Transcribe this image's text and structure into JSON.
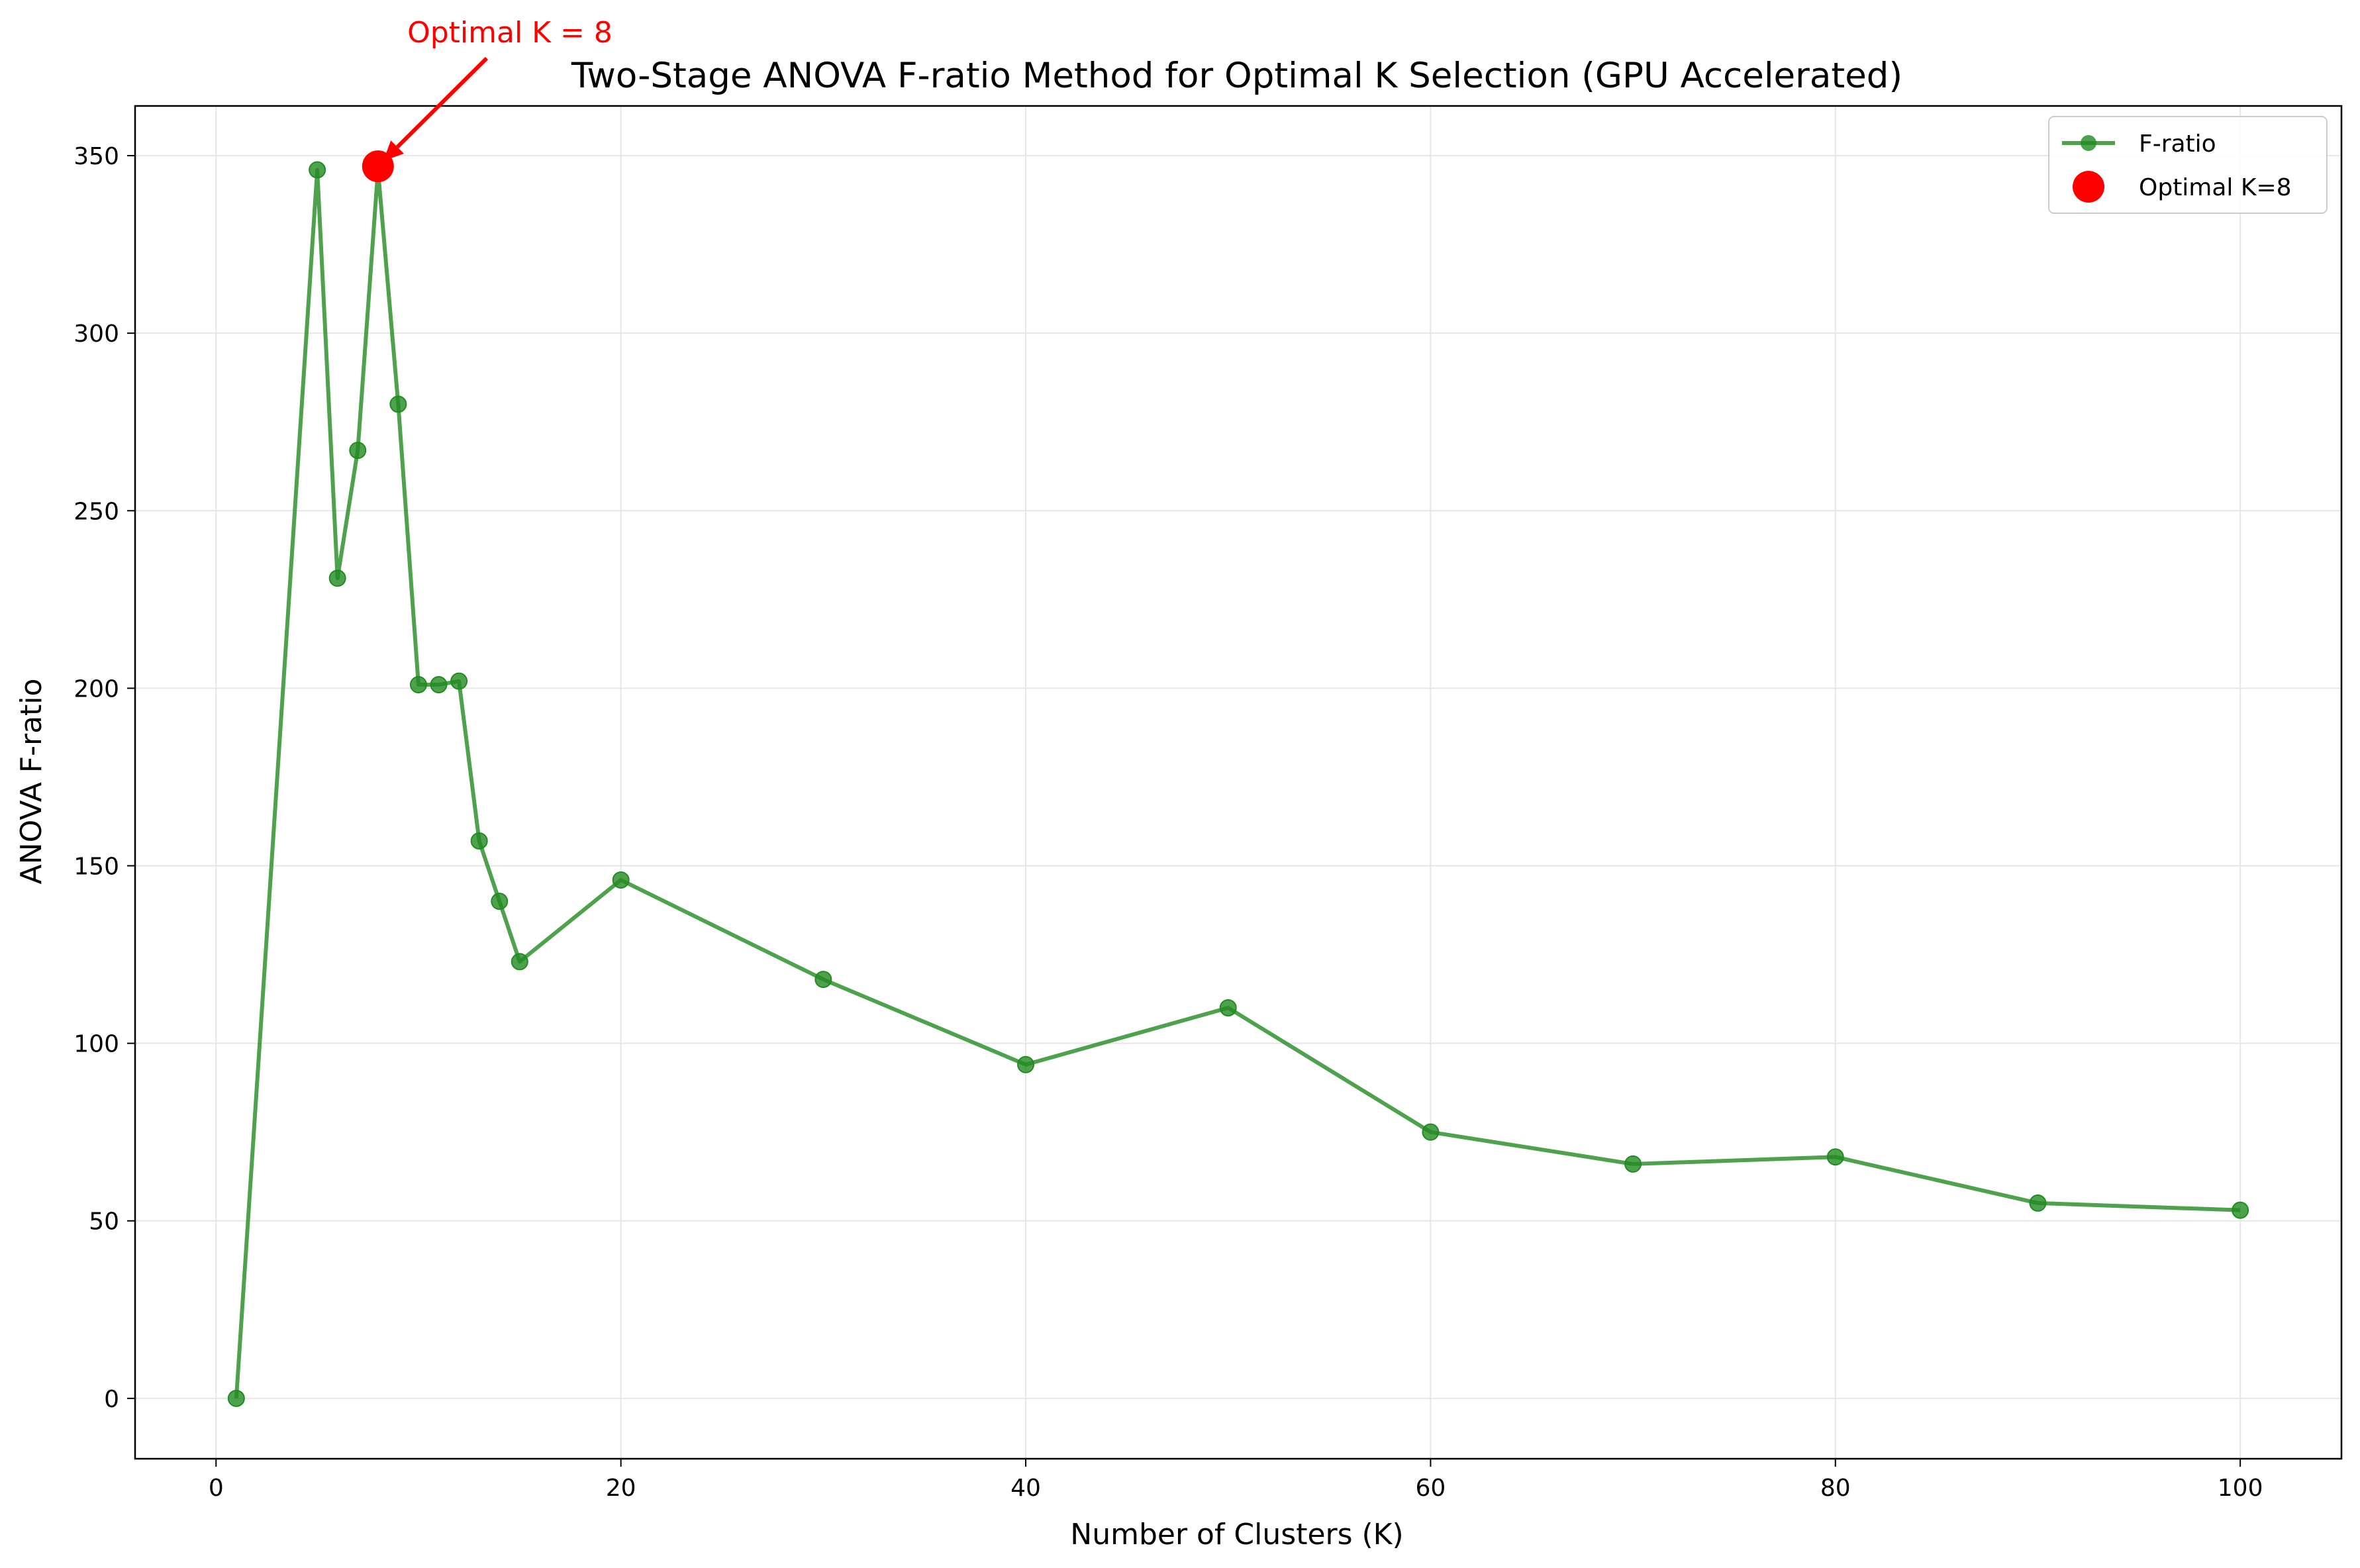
{
  "chart_data": {
    "type": "line",
    "title": "Two-Stage ANOVA F-ratio Method for Optimal K Selection (GPU Accelerated)",
    "xlabel": "Number of Clusters (K)",
    "ylabel": "ANOVA F-ratio",
    "xlim": [
      -4,
      105
    ],
    "ylim": [
      -17,
      364
    ],
    "xticks": [
      0,
      20,
      40,
      60,
      80,
      100
    ],
    "yticks": [
      0,
      50,
      100,
      150,
      200,
      250,
      300,
      350
    ],
    "grid": true,
    "legend_position": "top-right",
    "series": [
      {
        "name": "F-ratio",
        "color": "#228b22",
        "x": [
          1,
          5,
          6,
          7,
          8,
          9,
          10,
          11,
          12,
          13,
          14,
          15,
          20,
          30,
          40,
          50,
          60,
          70,
          80,
          90,
          100
        ],
        "values": [
          0,
          346,
          231,
          267,
          346,
          280,
          201,
          201,
          202,
          157,
          140,
          123,
          146,
          118,
          94,
          110,
          75,
          66,
          68,
          55,
          53
        ]
      }
    ],
    "highlight": {
      "name": "Optimal K=8",
      "color": "#ff0000",
      "x": 8,
      "y": 347
    },
    "annotation": {
      "text": "Optimal K = 8",
      "color": "#ff0000",
      "target_x": 8,
      "target_y": 347
    }
  }
}
